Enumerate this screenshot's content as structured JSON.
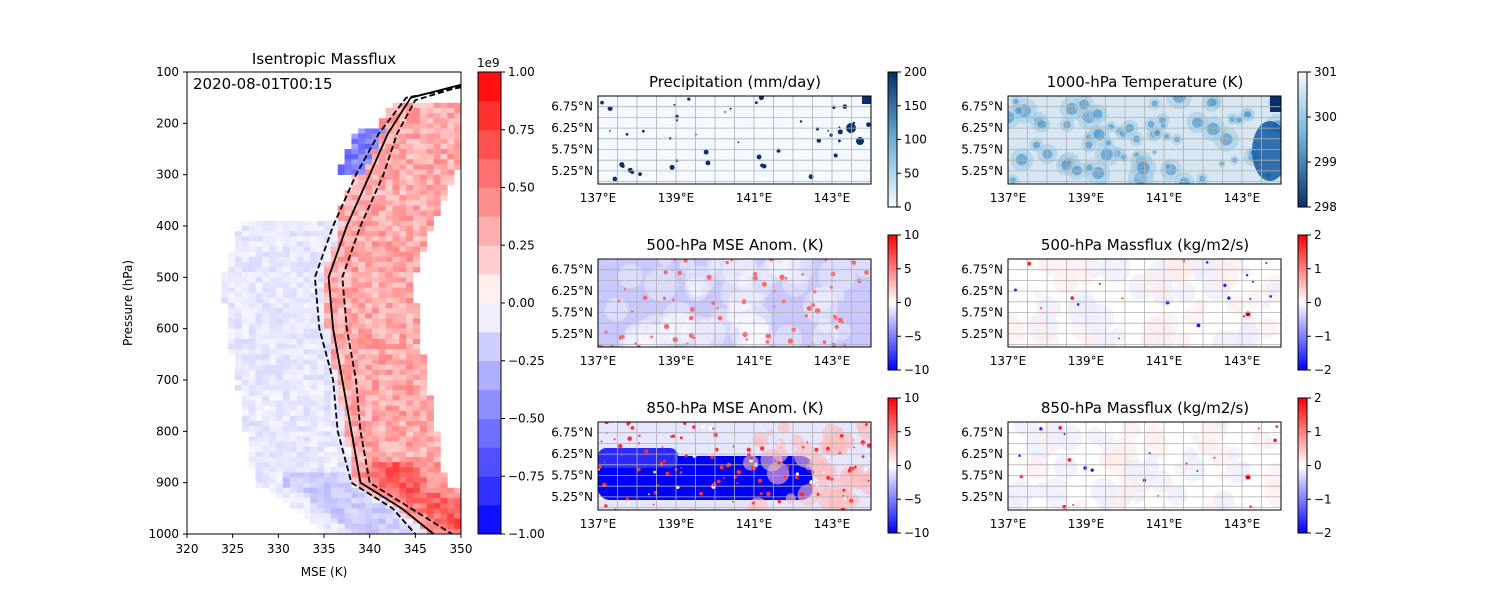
{
  "chart_data": [
    {
      "type": "heatmap",
      "title": "Isentropic Massflux",
      "annotation": "2020-08-01T00:15",
      "xlabel": "MSE (K)",
      "ylabel": "Pressure (hPa)",
      "xlim": [
        320,
        350
      ],
      "ylim": [
        1000,
        100
      ],
      "xticks": [
        "320",
        "325",
        "330",
        "335",
        "340",
        "345",
        "350"
      ],
      "yticks": [
        "100",
        "200",
        "300",
        "400",
        "500",
        "600",
        "700",
        "800",
        "900",
        "1000"
      ],
      "colorbar": {
        "cmap": "bwr",
        "range": [
          -1.0,
          1.0
        ],
        "offset_label": "1e9",
        "ticks": [
          "1.00",
          "0.75",
          "0.50",
          "0.25",
          "0.00",
          "−0.25",
          "−0.50",
          "−0.75",
          "−1.00"
        ]
      },
      "lines": [
        {
          "style": "solid",
          "points": [
            [
              350,
              125
            ],
            [
              344.5,
              150
            ],
            [
              342,
              220
            ],
            [
              340,
              300
            ],
            [
              337.5,
              400
            ],
            [
              335.5,
              500
            ],
            [
              336,
              600
            ],
            [
              337,
              700
            ],
            [
              338,
              800
            ],
            [
              339,
              900
            ],
            [
              343.5,
              950
            ],
            [
              347,
              1000
            ]
          ]
        },
        {
          "style": "dashed",
          "points": [
            [
              350,
              130
            ],
            [
              344,
              150
            ],
            [
              341,
              220
            ],
            [
              338.5,
              300
            ],
            [
              336,
              400
            ],
            [
              334,
              500
            ],
            [
              334.5,
              600
            ],
            [
              336,
              700
            ],
            [
              336.5,
              800
            ],
            [
              338,
              900
            ],
            [
              342.5,
              950
            ],
            [
              345,
              1000
            ]
          ]
        },
        {
          "style": "dashed",
          "points": [
            [
              350,
              128
            ],
            [
              345,
              155
            ],
            [
              343,
              220
            ],
            [
              341.5,
              300
            ],
            [
              339,
              400
            ],
            [
              337,
              500
            ],
            [
              337.5,
              600
            ],
            [
              338.5,
              700
            ],
            [
              339,
              800
            ],
            [
              340,
              900
            ],
            [
              344.5,
              950
            ],
            [
              349,
              1000
            ]
          ]
        }
      ]
    },
    {
      "type": "heatmap",
      "title": "Precipitation (mm/day)",
      "cmap": "Blues",
      "xticks": [
        "137°E",
        "139°E",
        "141°E",
        "143°E"
      ],
      "yticks": [
        "6.75°N",
        "6.25°N",
        "5.75°N",
        "5.25°N"
      ],
      "colorbar": {
        "range": [
          0,
          200
        ],
        "ticks": [
          "200",
          "150",
          "100",
          "50",
          "0"
        ]
      }
    },
    {
      "type": "heatmap",
      "title": "1000-hPa Temperature (K)",
      "cmap": "Blues_r",
      "xticks": [
        "137°E",
        "139°E",
        "141°E",
        "143°E"
      ],
      "yticks": [
        "6.75°N",
        "6.25°N",
        "5.75°N",
        "5.25°N"
      ],
      "colorbar": {
        "range": [
          298,
          301
        ],
        "ticks": [
          "301",
          "300",
          "299",
          "298"
        ]
      }
    },
    {
      "type": "heatmap",
      "title": "500-hPa MSE Anom. (K)",
      "cmap": "bwr",
      "xticks": [
        "137°E",
        "139°E",
        "141°E",
        "143°E"
      ],
      "yticks": [
        "6.75°N",
        "6.25°N",
        "5.75°N",
        "5.25°N"
      ],
      "colorbar": {
        "range": [
          -10,
          10
        ],
        "ticks": [
          "10",
          "5",
          "0",
          "−5",
          "−10"
        ]
      }
    },
    {
      "type": "heatmap",
      "title": "500-hPa Massflux (kg/m2/s)",
      "cmap": "bwr",
      "xticks": [
        "137°E",
        "139°E",
        "141°E",
        "143°E"
      ],
      "yticks": [
        "6.75°N",
        "6.25°N",
        "5.75°N",
        "5.25°N"
      ],
      "colorbar": {
        "range": [
          -2,
          2
        ],
        "ticks": [
          "2",
          "1",
          "0",
          "−1",
          "−2"
        ]
      }
    },
    {
      "type": "heatmap",
      "title": "850-hPa MSE Anom. (K)",
      "cmap": "bwr",
      "xticks": [
        "137°E",
        "139°E",
        "141°E",
        "143°E"
      ],
      "yticks": [
        "6.75°N",
        "6.25°N",
        "5.75°N",
        "5.25°N"
      ],
      "colorbar": {
        "range": [
          -10,
          10
        ],
        "ticks": [
          "10",
          "5",
          "0",
          "−5",
          "−10"
        ]
      }
    },
    {
      "type": "heatmap",
      "title": "850-hPa Massflux (kg/m2/s)",
      "cmap": "bwr",
      "xticks": [
        "137°E",
        "139°E",
        "141°E",
        "143°E"
      ],
      "yticks": [
        "6.75°N",
        "6.25°N",
        "5.75°N",
        "5.25°N"
      ],
      "colorbar": {
        "range": [
          -2,
          2
        ],
        "ticks": [
          "2",
          "1",
          "0",
          "−1",
          "−2"
        ]
      }
    }
  ]
}
